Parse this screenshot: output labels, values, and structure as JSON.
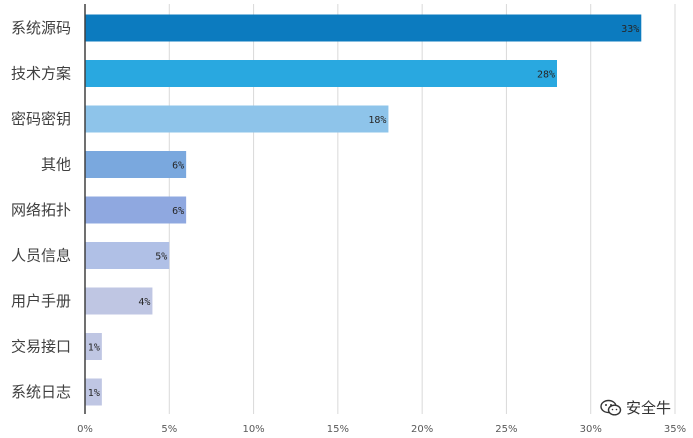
{
  "chart_data": {
    "type": "bar",
    "orientation": "horizontal",
    "categories": [
      "系统源码",
      "技术方案",
      "密码密钥",
      "其他",
      "网络拓扑",
      "人员信息",
      "用户手册",
      "交易接口",
      "系统日志"
    ],
    "values": [
      33,
      28,
      18,
      6,
      6,
      5,
      4,
      1,
      1
    ],
    "data_labels": [
      "33%",
      "28%",
      "18%",
      "6%",
      "6%",
      "5%",
      "4%",
      "1%",
      "1%"
    ],
    "colors": [
      "#0c7bbf",
      "#29a8e0",
      "#8ec4ea",
      "#7aa8de",
      "#8fa8e0",
      "#b0c0e6",
      "#bfc6e3",
      "#bfc6e3",
      "#bfc6e3"
    ],
    "x_ticks": [
      "0%",
      "5%",
      "10%",
      "15%",
      "20%",
      "25%",
      "30%",
      "35%"
    ],
    "xlim": [
      0,
      35
    ],
    "grid": true,
    "title": "",
    "xlabel": "",
    "ylabel": ""
  },
  "watermark": {
    "text": "安全牛",
    "icon": "wechat-icon"
  }
}
